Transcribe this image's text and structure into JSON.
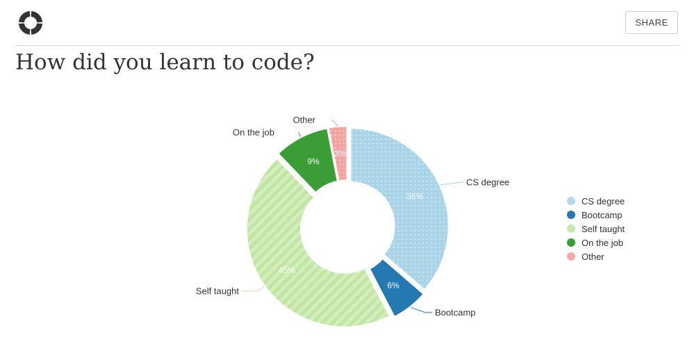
{
  "header": {
    "logo_icon": "donut-logo-icon",
    "share_label": "SHARE",
    "title": "How did you learn to code?"
  },
  "chart_data": {
    "type": "pie",
    "variant": "donut",
    "title": "How did you learn to code?",
    "categories": [
      "CS degree",
      "Bootcamp",
      "Self taught",
      "On the job",
      "Other"
    ],
    "values": [
      36,
      6,
      45,
      9,
      3
    ],
    "data_labels": [
      "36%",
      "6%",
      "45%",
      "9%",
      "3%"
    ],
    "colors": [
      "#a9d4e8",
      "#2479b2",
      "#c1e5a2",
      "#3a9d35",
      "#f4a1a1"
    ],
    "patterns": [
      "dots",
      "solid",
      "stripes",
      "solid",
      "dots"
    ],
    "legend_position": "right"
  }
}
